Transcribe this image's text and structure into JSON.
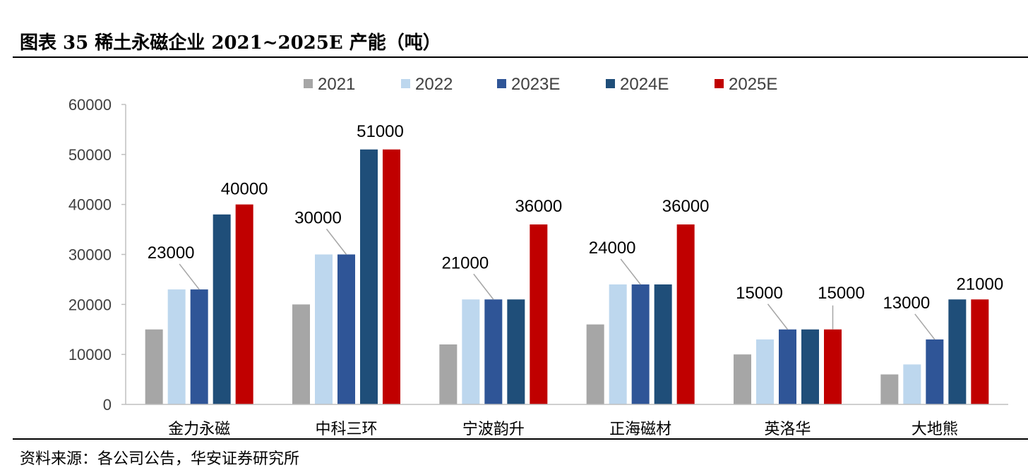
{
  "header": {
    "title": "图表 35 稀土永磁企业 2021~2025E 产能（吨）"
  },
  "footer": {
    "source": "资料来源：各公司公告，华安证券研究所"
  },
  "colors": {
    "2021": "#a6a6a6",
    "2022": "#bdd7ee",
    "2023E": "#2f5597",
    "2024E": "#1f4e79",
    "2025E": "#c00000"
  },
  "chart_data": {
    "type": "bar",
    "title": "稀土永磁企业 2021~2025E 产能（吨）",
    "xlabel": "",
    "ylabel": "",
    "ylim": [
      0,
      60000
    ],
    "yticks": [
      "0",
      "10000",
      "20000",
      "30000",
      "40000",
      "50000",
      "60000"
    ],
    "legend_position": "top",
    "categories": [
      "金力永磁",
      "中科三环",
      "宁波韵升",
      "正海磁材",
      "英洛华",
      "大地熊"
    ],
    "series": [
      {
        "name": "2021",
        "values": [
          15000,
          20000,
          12000,
          16000,
          10000,
          6000
        ]
      },
      {
        "name": "2022",
        "values": [
          23000,
          30000,
          21000,
          24000,
          13000,
          8000
        ]
      },
      {
        "name": "2023E",
        "values": [
          23000,
          30000,
          21000,
          24000,
          15000,
          13000
        ]
      },
      {
        "name": "2024E",
        "values": [
          38000,
          51000,
          21000,
          24000,
          15000,
          21000
        ]
      },
      {
        "name": "2025E",
        "values": [
          40000,
          51000,
          36000,
          36000,
          15000,
          21000
        ]
      }
    ],
    "data_labels": [
      {
        "category": "金力永磁",
        "series": "2023E",
        "text": "23000"
      },
      {
        "category": "金力永磁",
        "series": "2025E",
        "text": "40000"
      },
      {
        "category": "中科三环",
        "series": "2023E",
        "text": "30000"
      },
      {
        "category": "中科三环",
        "series": "2024E",
        "text": "51000"
      },
      {
        "category": "宁波韵升",
        "series": "2023E",
        "text": "21000"
      },
      {
        "category": "宁波韵升",
        "series": "2025E",
        "text": "36000"
      },
      {
        "category": "正海磁材",
        "series": "2023E",
        "text": "24000"
      },
      {
        "category": "正海磁材",
        "series": "2025E",
        "text": "36000"
      },
      {
        "category": "英洛华",
        "series": "2023E",
        "text": "15000"
      },
      {
        "category": "英洛华",
        "series": "2025E",
        "text": "15000"
      },
      {
        "category": "大地熊",
        "series": "2023E",
        "text": "13000"
      },
      {
        "category": "大地熊",
        "series": "2025E",
        "text": "21000"
      }
    ]
  }
}
